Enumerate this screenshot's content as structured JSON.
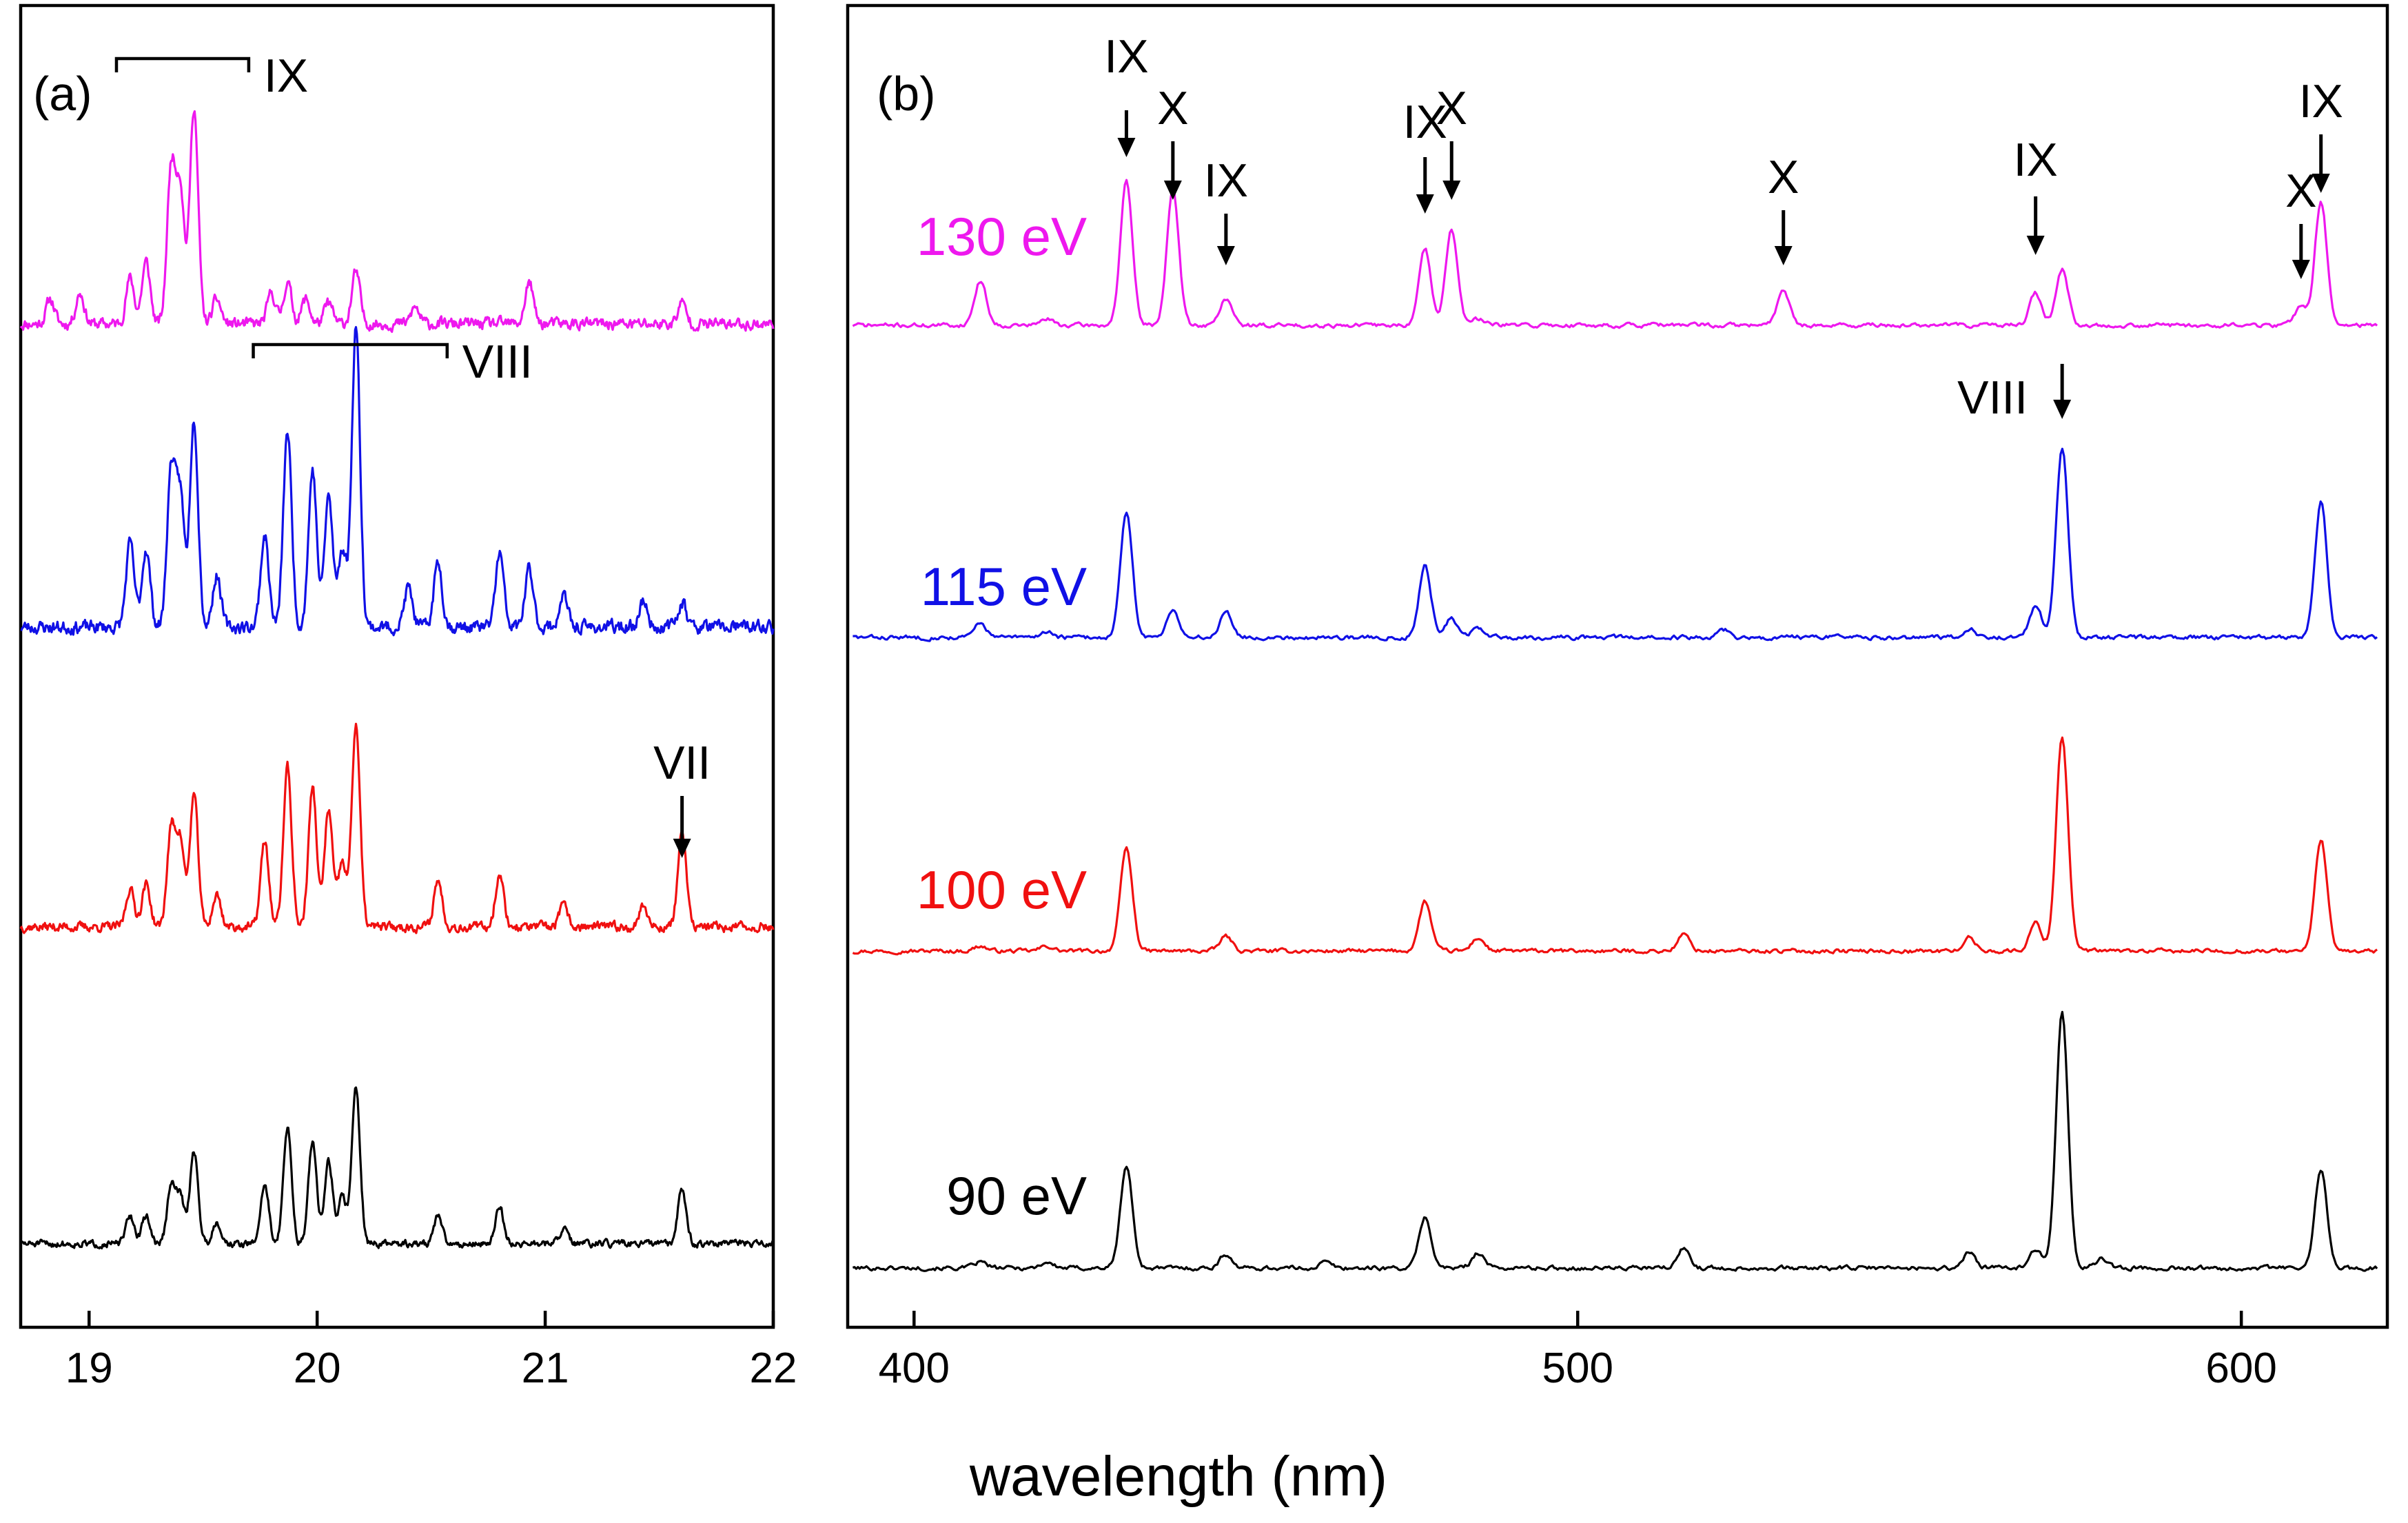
{
  "chart_data": {
    "type": "line",
    "xlabel": "wavelength (nm)",
    "colors": {
      "130 eV": "#ee18ee",
      "115 eV": "#1010e6",
      "100 eV": "#f01010",
      "90 eV": "#000000"
    },
    "panels": [
      {
        "id": "a",
        "label": "(a)",
        "xlim": [
          18.7,
          22.0
        ],
        "xticks": [
          19,
          20,
          21,
          22
        ],
        "tick_labels": [
          "19",
          "20",
          "21",
          "22"
        ],
        "series": [
          {
            "name": "130 eV",
            "baseline": 0.0,
            "noise": 0.045,
            "seed": 11,
            "peaks": [
              [
                18.83,
                0.12
              ],
              [
                18.96,
                0.15
              ],
              [
                19.18,
                0.22
              ],
              [
                19.25,
                0.3
              ],
              [
                19.36,
                0.75
              ],
              [
                19.4,
                0.65
              ],
              [
                19.46,
                1.05
              ],
              [
                19.56,
                0.12
              ],
              [
                19.8,
                0.15
              ],
              [
                19.87,
                0.2
              ],
              [
                19.95,
                0.12
              ],
              [
                20.05,
                0.1
              ],
              [
                20.17,
                0.25
              ],
              [
                20.43,
                0.08
              ],
              [
                20.93,
                0.2
              ],
              [
                21.6,
                0.1
              ]
            ]
          },
          {
            "name": "115 eV",
            "baseline": 0.0,
            "noise": 0.04,
            "seed": 23,
            "peaks": [
              [
                19.18,
                0.32
              ],
              [
                19.25,
                0.3
              ],
              [
                19.36,
                0.6
              ],
              [
                19.4,
                0.5
              ],
              [
                19.46,
                0.8
              ],
              [
                19.56,
                0.2
              ],
              [
                19.77,
                0.35
              ],
              [
                19.87,
                0.75
              ],
              [
                19.98,
                0.6
              ],
              [
                20.05,
                0.5
              ],
              [
                20.11,
                0.3
              ],
              [
                20.17,
                1.15
              ],
              [
                20.4,
                0.15
              ],
              [
                20.53,
                0.25
              ],
              [
                20.8,
                0.28
              ],
              [
                20.93,
                0.22
              ],
              [
                21.08,
                0.12
              ],
              [
                21.43,
                0.1
              ],
              [
                21.6,
                0.1
              ]
            ]
          },
          {
            "name": "100 eV",
            "baseline": 0.0,
            "noise": 0.035,
            "seed": 37,
            "peaks": [
              [
                19.18,
                0.18
              ],
              [
                19.25,
                0.2
              ],
              [
                19.36,
                0.45
              ],
              [
                19.4,
                0.4
              ],
              [
                19.46,
                0.62
              ],
              [
                19.56,
                0.15
              ],
              [
                19.77,
                0.4
              ],
              [
                19.87,
                0.75
              ],
              [
                19.98,
                0.65
              ],
              [
                20.05,
                0.55
              ],
              [
                20.11,
                0.3
              ],
              [
                20.17,
                0.95
              ],
              [
                20.53,
                0.22
              ],
              [
                20.8,
                0.25
              ],
              [
                21.08,
                0.1
              ],
              [
                21.43,
                0.1
              ],
              [
                21.6,
                0.45
              ]
            ]
          },
          {
            "name": "90 eV",
            "baseline": 0.0,
            "noise": 0.03,
            "seed": 51,
            "peaks": [
              [
                19.18,
                0.15
              ],
              [
                19.25,
                0.15
              ],
              [
                19.36,
                0.3
              ],
              [
                19.4,
                0.25
              ],
              [
                19.46,
                0.5
              ],
              [
                19.56,
                0.12
              ],
              [
                19.77,
                0.32
              ],
              [
                19.87,
                0.62
              ],
              [
                19.98,
                0.55
              ],
              [
                20.05,
                0.45
              ],
              [
                20.11,
                0.25
              ],
              [
                20.17,
                0.85
              ],
              [
                20.53,
                0.15
              ],
              [
                20.8,
                0.2
              ],
              [
                21.08,
                0.08
              ],
              [
                21.6,
                0.3
              ]
            ]
          }
        ],
        "annotations": {
          "bracket_ix": {
            "label": "IX",
            "x_from": 19.12,
            "x_to": 19.7
          },
          "bracket_viii": {
            "label": "VIII",
            "x_from": 19.72,
            "x_to": 20.57
          },
          "arrow_vii": {
            "label": "VII",
            "x": 21.6
          }
        }
      },
      {
        "id": "b",
        "label": "(b)",
        "xlim": [
          390,
          622
        ],
        "xticks": [
          400,
          500,
          600
        ],
        "tick_labels": [
          "400",
          "500",
          "600"
        ],
        "series": [
          {
            "name": "130 eV",
            "label": "130 eV",
            "noise": 0.022,
            "seed": 71,
            "peaks": [
              [
                410,
                0.28
              ],
              [
                420,
                0.04
              ],
              [
                432,
                0.9
              ],
              [
                439,
                0.85
              ],
              [
                447,
                0.17
              ],
              [
                477,
                0.48
              ],
              [
                481,
                0.6
              ],
              [
                485,
                0.04
              ],
              [
                531,
                0.23
              ],
              [
                569,
                0.2
              ],
              [
                573,
                0.35
              ],
              [
                609,
                0.12
              ],
              [
                612,
                0.78
              ]
            ]
          },
          {
            "name": "115 eV",
            "label": "115 eV",
            "noise": 0.022,
            "seed": 83,
            "peaks": [
              [
                410,
                0.09
              ],
              [
                420,
                0.04
              ],
              [
                432,
                0.78
              ],
              [
                439,
                0.18
              ],
              [
                447,
                0.17
              ],
              [
                477,
                0.45
              ],
              [
                481,
                0.12
              ],
              [
                485,
                0.06
              ],
              [
                522,
                0.05
              ],
              [
                559,
                0.06
              ],
              [
                569,
                0.2
              ],
              [
                573,
                1.2
              ],
              [
                612,
                0.85
              ]
            ]
          },
          {
            "name": "100 eV",
            "label": "100 eV",
            "noise": 0.02,
            "seed": 97,
            "peaks": [
              [
                410,
                0.03
              ],
              [
                420,
                0.03
              ],
              [
                432,
                0.62
              ],
              [
                447,
                0.09
              ],
              [
                477,
                0.3
              ],
              [
                485,
                0.08
              ],
              [
                516,
                0.1
              ],
              [
                559,
                0.08
              ],
              [
                569,
                0.17
              ],
              [
                573,
                1.3
              ],
              [
                612,
                0.68
              ]
            ]
          },
          {
            "name": "90 eV",
            "label": "90 eV",
            "noise": 0.018,
            "seed": 101,
            "peaks": [
              [
                410,
                0.03
              ],
              [
                420,
                0.03
              ],
              [
                432,
                0.52
              ],
              [
                447,
                0.07
              ],
              [
                462,
                0.03
              ],
              [
                477,
                0.26
              ],
              [
                485,
                0.08
              ],
              [
                516,
                0.1
              ],
              [
                559,
                0.08
              ],
              [
                569,
                0.1
              ],
              [
                573,
                1.3
              ],
              [
                579,
                0.05
              ],
              [
                612,
                0.5
              ]
            ]
          }
        ],
        "annotations": [
          {
            "label": "IX",
            "x": 432,
            "series": "130 eV"
          },
          {
            "label": "X",
            "x": 439,
            "series": "130 eV"
          },
          {
            "label": "IX",
            "x": 447,
            "series": "130 eV"
          },
          {
            "label": "IX",
            "x": 477,
            "series": "130 eV"
          },
          {
            "label": "X",
            "x": 481,
            "series": "130 eV"
          },
          {
            "label": "X",
            "x": 531,
            "series": "130 eV"
          },
          {
            "label": "IX",
            "x": 569,
            "series": "130 eV"
          },
          {
            "label": "X",
            "x": 609,
            "series": "130 eV"
          },
          {
            "label": "IX",
            "x": 612,
            "series": "130 eV"
          },
          {
            "label": "VIII",
            "x": 573,
            "series": "115 eV"
          }
        ]
      }
    ]
  }
}
